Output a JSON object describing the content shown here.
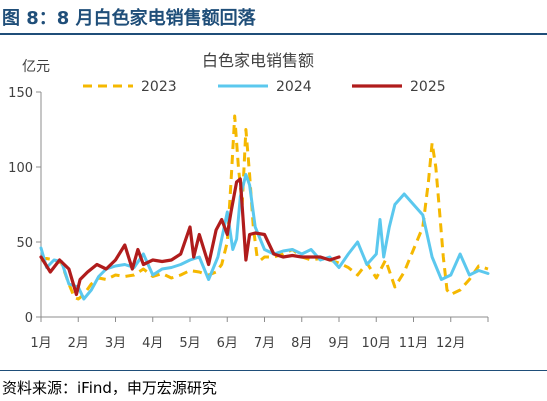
{
  "header": {
    "title": "图 8：8 月白色家电销售额回落"
  },
  "footer": {
    "source": "资料来源：iFind，申万宏源研究"
  },
  "colors": {
    "header_blue": "#1f4e79",
    "axis_grey": "#8c8c8c",
    "series_2023": "#f5b800",
    "series_2024": "#5bc8ee",
    "series_2025": "#b01c1c"
  },
  "chart_data": {
    "type": "line",
    "title": "白色家电销售额",
    "ylabel": "亿元",
    "ylim": [
      0,
      150
    ],
    "yticks": [
      0,
      50,
      100,
      150
    ],
    "xlim": [
      1,
      13
    ],
    "xticks": [
      1,
      2,
      3,
      4,
      5,
      6,
      7,
      8,
      9,
      10,
      11,
      12
    ],
    "xtick_labels": [
      "1月",
      "2月",
      "3月",
      "4月",
      "5月",
      "6月",
      "7月",
      "8月",
      "9月",
      "10月",
      "11月",
      "12月"
    ],
    "grid": false,
    "legend": "top",
    "series": [
      {
        "name": "2023",
        "style": "dashed",
        "x": [
          1.0,
          1.15,
          1.35,
          1.55,
          1.75,
          1.9,
          2.0,
          2.15,
          2.35,
          2.55,
          2.75,
          3.0,
          3.25,
          3.5,
          3.75,
          4.0,
          4.25,
          4.5,
          4.75,
          5.0,
          5.25,
          5.5,
          5.7,
          5.85,
          6.0,
          6.1,
          6.2,
          6.3,
          6.4,
          6.5,
          6.6,
          6.7,
          6.8,
          6.9,
          7.0,
          7.25,
          7.5,
          7.75,
          8.0,
          8.25,
          8.5,
          8.75,
          9.0,
          9.25,
          9.5,
          9.75,
          10.0,
          10.25,
          10.5,
          10.75,
          11.0,
          11.25,
          11.4,
          11.5,
          11.6,
          11.7,
          11.8,
          11.9,
          12.0,
          12.25,
          12.5,
          12.75,
          13.0
        ],
        "y": [
          38,
          39,
          38,
          36,
          22,
          13,
          12,
          15,
          22,
          26,
          25,
          28,
          27,
          28,
          32,
          27,
          29,
          26,
          28,
          31,
          30,
          28,
          30,
          35,
          50,
          90,
          134,
          100,
          75,
          125,
          95,
          60,
          40,
          38,
          40,
          40,
          42,
          45,
          40,
          38,
          39,
          38,
          36,
          33,
          28,
          36,
          26,
          38,
          20,
          30,
          45,
          60,
          90,
          116,
          100,
          70,
          40,
          18,
          15,
          18,
          25,
          34,
          32
        ]
      },
      {
        "name": "2024",
        "style": "solid",
        "x": [
          1.0,
          1.15,
          1.35,
          1.55,
          1.75,
          2.0,
          2.15,
          2.35,
          2.55,
          2.75,
          3.0,
          3.25,
          3.5,
          3.75,
          4.0,
          4.25,
          4.5,
          4.75,
          5.0,
          5.25,
          5.5,
          5.75,
          6.0,
          6.15,
          6.25,
          6.35,
          6.5,
          6.6,
          6.75,
          7.0,
          7.25,
          7.5,
          7.75,
          8.0,
          8.25,
          8.5,
          8.75,
          9.0,
          9.25,
          9.5,
          9.75,
          10.0,
          10.1,
          10.2,
          10.35,
          10.5,
          10.75,
          11.0,
          11.25,
          11.5,
          11.75,
          12.0,
          12.25,
          12.5,
          12.75,
          13.0
        ],
        "y": [
          46,
          33,
          38,
          37,
          22,
          20,
          12,
          18,
          27,
          32,
          34,
          35,
          33,
          42,
          28,
          32,
          33,
          35,
          38,
          40,
          25,
          40,
          70,
          45,
          52,
          80,
          95,
          88,
          60,
          45,
          42,
          44,
          45,
          42,
          45,
          38,
          40,
          33,
          42,
          50,
          35,
          42,
          65,
          40,
          60,
          75,
          82,
          75,
          68,
          40,
          25,
          28,
          42,
          28,
          31,
          29
        ]
      },
      {
        "name": "2025",
        "style": "solid",
        "x": [
          1.0,
          1.25,
          1.5,
          1.75,
          1.95,
          2.05,
          2.25,
          2.5,
          2.75,
          3.0,
          3.25,
          3.45,
          3.6,
          3.75,
          4.0,
          4.25,
          4.5,
          4.75,
          5.0,
          5.1,
          5.25,
          5.5,
          5.7,
          5.85,
          6.0,
          6.1,
          6.25,
          6.35,
          6.5,
          6.6,
          6.75,
          7.0,
          7.25,
          7.5,
          7.75,
          8.0,
          8.25,
          8.5,
          8.75,
          9.0
        ],
        "y": [
          40,
          30,
          38,
          32,
          15,
          25,
          30,
          35,
          32,
          38,
          48,
          32,
          45,
          35,
          38,
          37,
          38,
          42,
          60,
          40,
          55,
          35,
          58,
          65,
          55,
          70,
          90,
          92,
          38,
          55,
          56,
          55,
          42,
          40,
          41,
          40,
          40,
          40,
          38,
          40
        ]
      }
    ]
  }
}
